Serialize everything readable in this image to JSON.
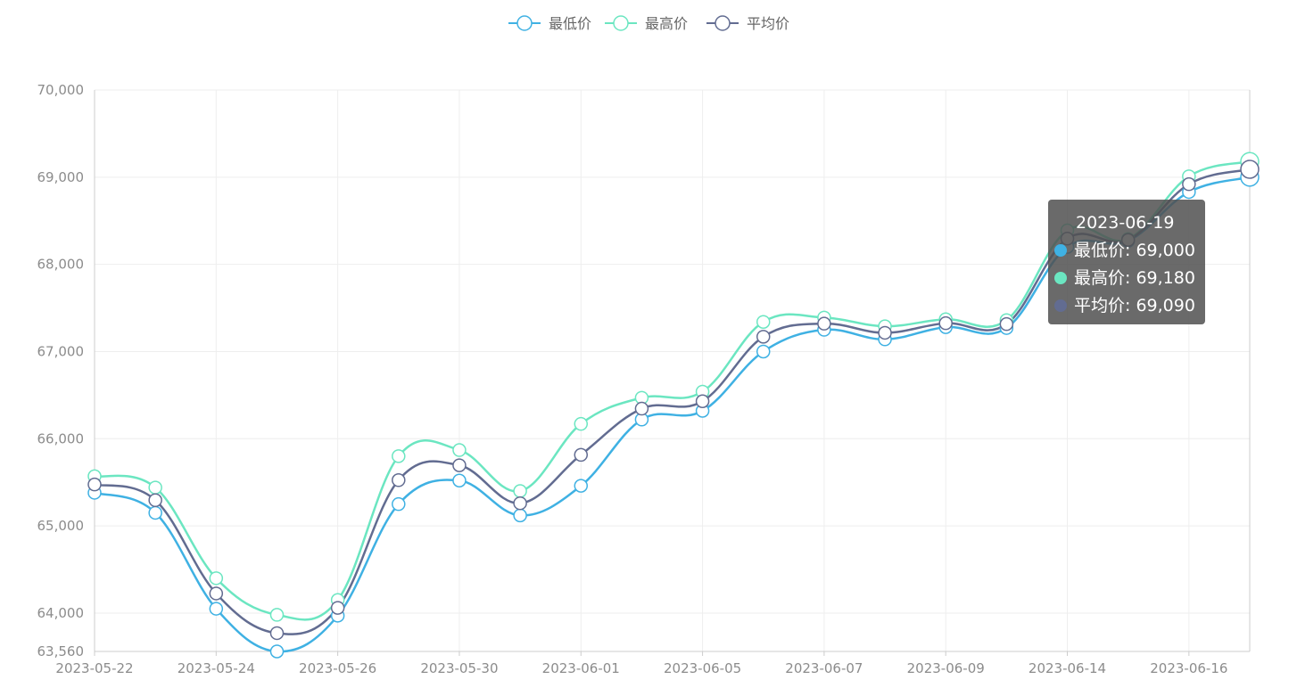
{
  "chart_data": {
    "type": "line",
    "smooth": true,
    "x": [
      "2023-05-22",
      "2023-05-23",
      "2023-05-24",
      "2023-05-25",
      "2023-05-26",
      "2023-05-29",
      "2023-05-30",
      "2023-05-31",
      "2023-06-01",
      "2023-06-02",
      "2023-06-05",
      "2023-06-06",
      "2023-06-07",
      "2023-06-08",
      "2023-06-09",
      "2023-06-13",
      "2023-06-14",
      "2023-06-15",
      "2023-06-16",
      "2023-06-19"
    ],
    "x_tick_labels": [
      "2023-05-22",
      "2023-05-24",
      "2023-05-26",
      "2023-05-30",
      "2023-06-01",
      "2023-06-05",
      "2023-06-07",
      "2023-06-09",
      "2023-06-14",
      "2023-06-16"
    ],
    "ylim": [
      63560,
      70000
    ],
    "y_ticks": [
      63560,
      64000,
      65000,
      66000,
      67000,
      68000,
      69000,
      70000
    ],
    "y_tick_labels": [
      "63,560",
      "64,000",
      "65,000",
      "66,000",
      "67,000",
      "68,000",
      "69,000",
      "70,000"
    ],
    "grid": true,
    "legend_position": "top-center",
    "series": [
      {
        "name": "最低价",
        "color": "#3fb1e3",
        "values": [
          65380,
          65150,
          64050,
          63560,
          63970,
          65250,
          65520,
          65120,
          65460,
          66220,
          66320,
          67000,
          67250,
          67140,
          67280,
          67270,
          68200,
          68270,
          68830,
          69000
        ]
      },
      {
        "name": "最高价",
        "color": "#6be6c1",
        "values": [
          65570,
          65440,
          64400,
          63980,
          64150,
          65800,
          65870,
          65400,
          66170,
          66470,
          66540,
          67340,
          67390,
          67290,
          67370,
          67360,
          68390,
          68290,
          69010,
          69180
        ]
      },
      {
        "name": "平均价",
        "color": "#626c91",
        "values": [
          65475,
          65295,
          64225,
          63770,
          64060,
          65525,
          65695,
          65260,
          65815,
          66345,
          66430,
          67170,
          67320,
          67215,
          67325,
          67315,
          68295,
          68280,
          68920,
          69090
        ]
      }
    ],
    "tooltip": {
      "title": "2023-06-19",
      "rows": [
        {
          "label": "最低价",
          "value": "69,000",
          "color": "#3fb1e3"
        },
        {
          "label": "最高价",
          "value": "69,180",
          "color": "#6be6c1"
        },
        {
          "label": "平均价",
          "value": "69,090",
          "color": "#626c91"
        }
      ]
    }
  }
}
